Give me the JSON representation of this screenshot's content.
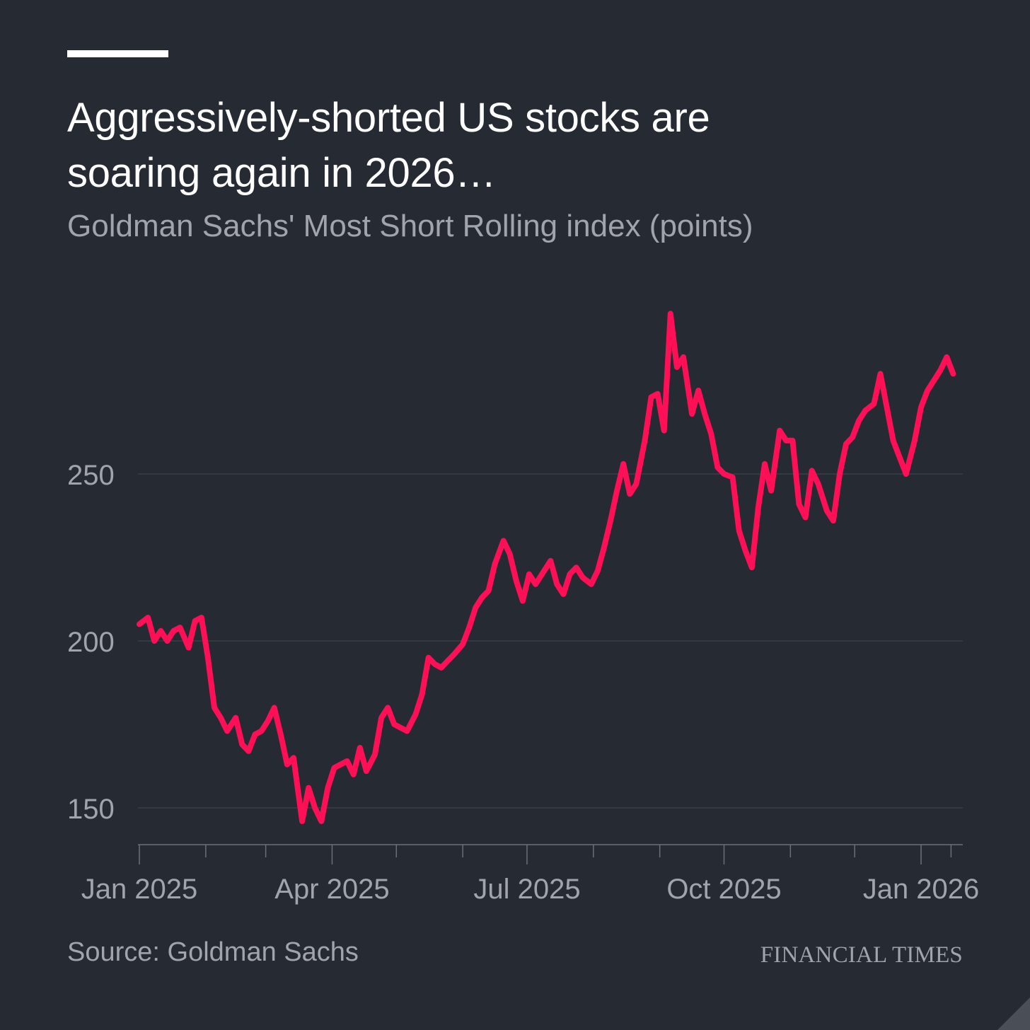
{
  "header": {
    "title": "Aggressively-shorted US stocks are soaring again in 2026…",
    "subtitle": "Goldman Sachs' Most Short Rolling index (points)"
  },
  "footer": {
    "source": "Source: Goldman Sachs",
    "brand": "FINANCIAL TIMES"
  },
  "colors": {
    "background": "#262a33",
    "line": "#ff0f55",
    "grid": "#3a3e47",
    "text_muted": "#a1a4ab",
    "text_primary": "#ffffff"
  },
  "chart_data": {
    "type": "line",
    "title": "Aggressively-shorted US stocks are soaring again in 2026…",
    "subtitle": "Goldman Sachs' Most Short Rolling index (points)",
    "xlabel": "",
    "ylabel": "",
    "ylim": [
      139,
      300
    ],
    "xlim": [
      "2024-12-31",
      "2026-01-17"
    ],
    "y_ticks": [
      150,
      200,
      250
    ],
    "x_tick_labels": [
      {
        "label": "Jan 2025",
        "date": "2025-01-01"
      },
      {
        "label": "Apr 2025",
        "date": "2025-04-01"
      },
      {
        "label": "Jul 2025",
        "date": "2025-07-01"
      },
      {
        "label": "Oct 2025",
        "date": "2025-10-01"
      },
      {
        "label": "Jan 2026",
        "date": "2026-01-01"
      }
    ],
    "x_minor_ticks": [
      "2025-02-01",
      "2025-03-01",
      "2025-05-01",
      "2025-06-01",
      "2025-08-01",
      "2025-09-01",
      "2025-11-01",
      "2025-12-01",
      "2026-01-15"
    ],
    "grid": true,
    "legend": "none",
    "series": [
      {
        "x": [
          "2025-01-01",
          "2025-01-05",
          "2025-01-08",
          "2025-01-11",
          "2025-01-14",
          "2025-01-17",
          "2025-01-20",
          "2025-01-24",
          "2025-01-27",
          "2025-01-30",
          "2025-02-02",
          "2025-02-05",
          "2025-02-08",
          "2025-02-11",
          "2025-02-15",
          "2025-02-18",
          "2025-02-21",
          "2025-02-24",
          "2025-02-27",
          "2025-03-02",
          "2025-03-05",
          "2025-03-08",
          "2025-03-11",
          "2025-03-14",
          "2025-03-18",
          "2025-03-21",
          "2025-03-24",
          "2025-03-27",
          "2025-03-30",
          "2025-04-02",
          "2025-04-05",
          "2025-04-08",
          "2025-04-11",
          "2025-04-14",
          "2025-04-17",
          "2025-04-21",
          "2025-04-24",
          "2025-04-27",
          "2025-04-30",
          "2025-05-03",
          "2025-05-06",
          "2025-05-10",
          "2025-05-13",
          "2025-05-16",
          "2025-05-19",
          "2025-05-22",
          "2025-05-25",
          "2025-05-28",
          "2025-06-01",
          "2025-06-04",
          "2025-06-07",
          "2025-06-10",
          "2025-06-13",
          "2025-06-16",
          "2025-06-20",
          "2025-06-23",
          "2025-06-26",
          "2025-06-29",
          "2025-07-02",
          "2025-07-05",
          "2025-07-08",
          "2025-07-12",
          "2025-07-15",
          "2025-07-18",
          "2025-07-21",
          "2025-07-24",
          "2025-07-27",
          "2025-07-31",
          "2025-08-03",
          "2025-08-06",
          "2025-08-09",
          "2025-08-12",
          "2025-08-15",
          "2025-08-18",
          "2025-08-21",
          "2025-08-25",
          "2025-08-28",
          "2025-08-31",
          "2025-09-03",
          "2025-09-06",
          "2025-09-09",
          "2025-09-12",
          "2025-09-16",
          "2025-09-19",
          "2025-09-22",
          "2025-09-25",
          "2025-09-28",
          "2025-10-01",
          "2025-10-05",
          "2025-10-08",
          "2025-10-11",
          "2025-10-14",
          "2025-10-17",
          "2025-10-20",
          "2025-10-23",
          "2025-10-27",
          "2025-10-30",
          "2025-11-02",
          "2025-11-05",
          "2025-11-08",
          "2025-11-11",
          "2025-11-14",
          "2025-11-18",
          "2025-11-21",
          "2025-11-24",
          "2025-11-27",
          "2025-11-30",
          "2025-12-03",
          "2025-12-06",
          "2025-12-10",
          "2025-12-13",
          "2025-12-16",
          "2025-12-19",
          "2025-12-22",
          "2025-12-25",
          "2025-12-29",
          "2026-01-01",
          "2026-01-04",
          "2026-01-07",
          "2026-01-10",
          "2026-01-13",
          "2026-01-16"
        ],
        "values": [
          205,
          207,
          200,
          203,
          200,
          203,
          204,
          198,
          206,
          207,
          195,
          180,
          177,
          173,
          177,
          169,
          167,
          172,
          173,
          176,
          180,
          172,
          163,
          165,
          146,
          156,
          150,
          146,
          156,
          162,
          163,
          164,
          160,
          168,
          161,
          166,
          177,
          180,
          175,
          174,
          173,
          178,
          184,
          195,
          193,
          192,
          194,
          196,
          199,
          204,
          210,
          213,
          215,
          223,
          230,
          226,
          218,
          212,
          220,
          217,
          220,
          224,
          217,
          214,
          220,
          222,
          219,
          217,
          221,
          228,
          236,
          245,
          253,
          244,
          247,
          260,
          273,
          274,
          263,
          298,
          282,
          285,
          268,
          275,
          268,
          262,
          252,
          250,
          249,
          233,
          227,
          222,
          240,
          253,
          245,
          263,
          260,
          260,
          241,
          237,
          251,
          247,
          239,
          236,
          250,
          259,
          261,
          266,
          269,
          271,
          280,
          270,
          260,
          255,
          250,
          260,
          270,
          275,
          278,
          281,
          285,
          280
        ]
      }
    ]
  }
}
